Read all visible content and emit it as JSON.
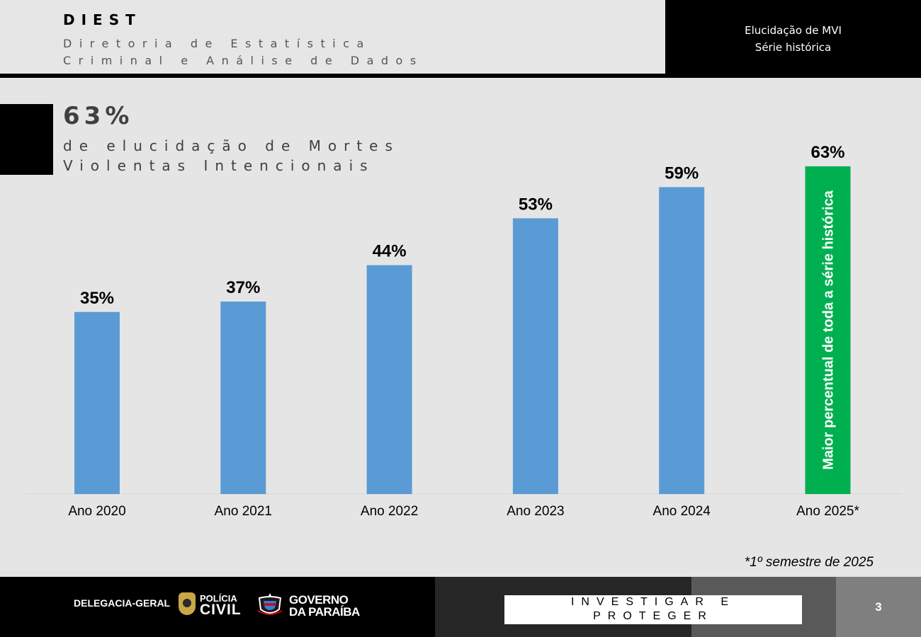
{
  "header": {
    "org_code": "DIEST",
    "org_name_line1": "Diretoria de Estatística",
    "org_name_line2": "Criminal e Análise de Dados",
    "report_title_line1": "Elucidação de MVI",
    "report_title_line2": "Série histórica"
  },
  "headline": {
    "value": "63%",
    "text_line1": "de elucidação de Mortes",
    "text_line2": "Violentas Intencionais"
  },
  "colors": {
    "bar": "#5b9bd5",
    "highlight_bar": "#00b050",
    "background": "#e5e5e5"
  },
  "chart_data": {
    "type": "bar",
    "categories": [
      "Ano 2020",
      "Ano 2021",
      "Ano 2022",
      "Ano 2023",
      "Ano 2024",
      "Ano 2025*"
    ],
    "values": [
      35,
      37,
      44,
      53,
      59,
      63
    ],
    "data_labels": [
      "35%",
      "37%",
      "44%",
      "53%",
      "59%",
      "63%"
    ],
    "ylim": [
      0,
      100
    ],
    "highlight_index": 5,
    "highlight_annotation": "Maior percentual de toda a série histórica",
    "title": "",
    "xlabel": "",
    "ylabel": "",
    "grid": false
  },
  "footnote": "*1º semestre de 2025",
  "footer": {
    "department": "DELEGACIA-GERAL",
    "police_logo_line1": "POLÍCIA",
    "police_logo_line2": "CIVIL",
    "gov_logo_line1": "GOVERNO",
    "gov_logo_line2": "DA PARAÍBA",
    "motto_line1": "INVESTIGAR E",
    "motto_line2": "PROTEGER",
    "page_number": "3"
  }
}
